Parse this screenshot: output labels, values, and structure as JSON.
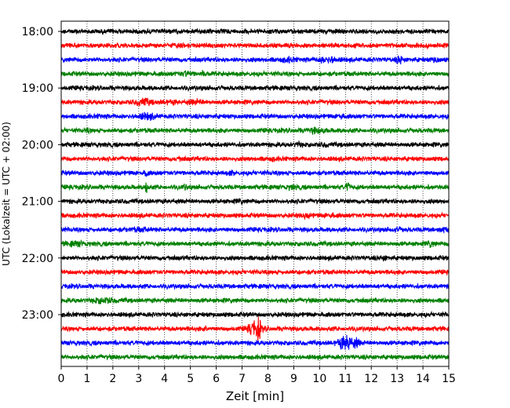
{
  "chart_data": {
    "type": "line",
    "title": "",
    "xlabel": "Zeit  [min]",
    "ylabel": "UTC (Lokalzeit = UTC + 02:00)",
    "xlim": [
      0,
      15
    ],
    "x_ticks": [
      "0",
      "1",
      "2",
      "3",
      "4",
      "5",
      "6",
      "7",
      "8",
      "9",
      "10",
      "11",
      "12",
      "13",
      "14",
      "15"
    ],
    "y_ticks": [
      "18:00",
      "19:00",
      "20:00",
      "21:00",
      "22:00",
      "23:00"
    ],
    "x_grid": true,
    "trace_interval_min": 15,
    "trace_colors": [
      "#000000",
      "#ff0000",
      "#0000ff",
      "#008000"
    ],
    "traces": [
      {
        "start": "18:00",
        "color": "#000000",
        "bursts": []
      },
      {
        "start": "18:15",
        "color": "#ff0000",
        "bursts": []
      },
      {
        "start": "18:30",
        "color": "#0000ff",
        "bursts": [
          {
            "t": 8.8,
            "amp": 1.6,
            "w": 0.25
          },
          {
            "t": 10.3,
            "amp": 1.9,
            "w": 0.35
          },
          {
            "t": 13.1,
            "amp": 2.4,
            "w": 0.12
          },
          {
            "t": 14.5,
            "amp": 1.6,
            "w": 0.15
          }
        ]
      },
      {
        "start": "18:45",
        "color": "#008000",
        "bursts": [
          {
            "t": 4.8,
            "amp": 1.5,
            "w": 0.3
          },
          {
            "t": 5.5,
            "amp": 1.8,
            "w": 0.08
          }
        ]
      },
      {
        "start": "19:00",
        "color": "#000000",
        "bursts": []
      },
      {
        "start": "19:15",
        "color": "#ff0000",
        "bursts": [
          {
            "t": 3.2,
            "amp": 2.0,
            "w": 0.3
          },
          {
            "t": 4.2,
            "amp": 1.4,
            "w": 0.3
          },
          {
            "t": 5.2,
            "amp": 1.5,
            "w": 0.3
          }
        ]
      },
      {
        "start": "19:30",
        "color": "#0000ff",
        "bursts": [
          {
            "t": 1.5,
            "amp": 1.3,
            "w": 0.1
          },
          {
            "t": 3.3,
            "amp": 1.9,
            "w": 0.3
          },
          {
            "t": 10.8,
            "amp": 1.8,
            "w": 0.1
          }
        ]
      },
      {
        "start": "19:45",
        "color": "#008000",
        "bursts": [
          {
            "t": 1.0,
            "amp": 1.4,
            "w": 0.1
          },
          {
            "t": 9.8,
            "amp": 1.7,
            "w": 0.35
          }
        ]
      },
      {
        "start": "20:00",
        "color": "#000000",
        "bursts": [
          {
            "t": 9.2,
            "amp": 1.6,
            "w": 0.12
          },
          {
            "t": 10.2,
            "amp": 1.3,
            "w": 0.15
          }
        ]
      },
      {
        "start": "20:15",
        "color": "#ff0000",
        "bursts": [
          {
            "t": 4.6,
            "amp": 1.3,
            "w": 0.1
          },
          {
            "t": 8.2,
            "amp": 1.3,
            "w": 0.1
          }
        ]
      },
      {
        "start": "20:30",
        "color": "#0000ff",
        "bursts": [
          {
            "t": 3.3,
            "amp": 2.6,
            "w": 0.05
          },
          {
            "t": 6.6,
            "amp": 1.5,
            "w": 0.1
          }
        ]
      },
      {
        "start": "20:45",
        "color": "#008000",
        "bursts": [
          {
            "t": 3.3,
            "amp": 4.0,
            "w": 0.05
          },
          {
            "t": 4.8,
            "amp": 1.5,
            "w": 0.1
          },
          {
            "t": 8.9,
            "amp": 1.5,
            "w": 0.2
          },
          {
            "t": 11.1,
            "amp": 2.4,
            "w": 0.08
          }
        ]
      },
      {
        "start": "21:00",
        "color": "#000000",
        "bursts": [
          {
            "t": 6.9,
            "amp": 1.4,
            "w": 0.1
          }
        ]
      },
      {
        "start": "21:15",
        "color": "#ff0000",
        "bursts": [
          {
            "t": 9.5,
            "amp": 1.5,
            "w": 0.15
          },
          {
            "t": 10.4,
            "amp": 1.4,
            "w": 0.2
          }
        ]
      },
      {
        "start": "21:30",
        "color": "#0000ff",
        "bursts": [
          {
            "t": 3.0,
            "amp": 1.3,
            "w": 0.4
          },
          {
            "t": 13.0,
            "amp": 1.4,
            "w": 0.2
          },
          {
            "t": 14.8,
            "amp": 1.5,
            "w": 0.2
          }
        ]
      },
      {
        "start": "21:45",
        "color": "#008000",
        "bursts": [
          {
            "t": 0.6,
            "amp": 1.5,
            "w": 0.4
          },
          {
            "t": 14.3,
            "amp": 1.9,
            "w": 0.12
          }
        ]
      },
      {
        "start": "22:00",
        "color": "#000000",
        "bursts": [
          {
            "t": 12.5,
            "amp": 1.5,
            "w": 0.1
          }
        ]
      },
      {
        "start": "22:15",
        "color": "#ff0000",
        "bursts": []
      },
      {
        "start": "22:30",
        "color": "#0000ff",
        "bursts": []
      },
      {
        "start": "22:45",
        "color": "#008000",
        "bursts": [
          {
            "t": 1.6,
            "amp": 1.6,
            "w": 0.4
          }
        ]
      },
      {
        "start": "23:00",
        "color": "#000000",
        "bursts": []
      },
      {
        "start": "23:15",
        "color": "#ff0000",
        "bursts": [
          {
            "t": 5.6,
            "amp": 1.6,
            "w": 0.05
          },
          {
            "t": 7.5,
            "amp": 3.6,
            "w": 0.25
          },
          {
            "t": 7.65,
            "amp": 4.2,
            "w": 0.05
          }
        ]
      },
      {
        "start": "23:30",
        "color": "#0000ff",
        "bursts": [
          {
            "t": 11.0,
            "amp": 3.2,
            "w": 0.3
          },
          {
            "t": 11.1,
            "amp": 4.0,
            "w": 0.05
          },
          {
            "t": 11.4,
            "amp": 2.2,
            "w": 0.15
          }
        ]
      },
      {
        "start": "23:45",
        "color": "#008000",
        "bursts": []
      }
    ]
  }
}
